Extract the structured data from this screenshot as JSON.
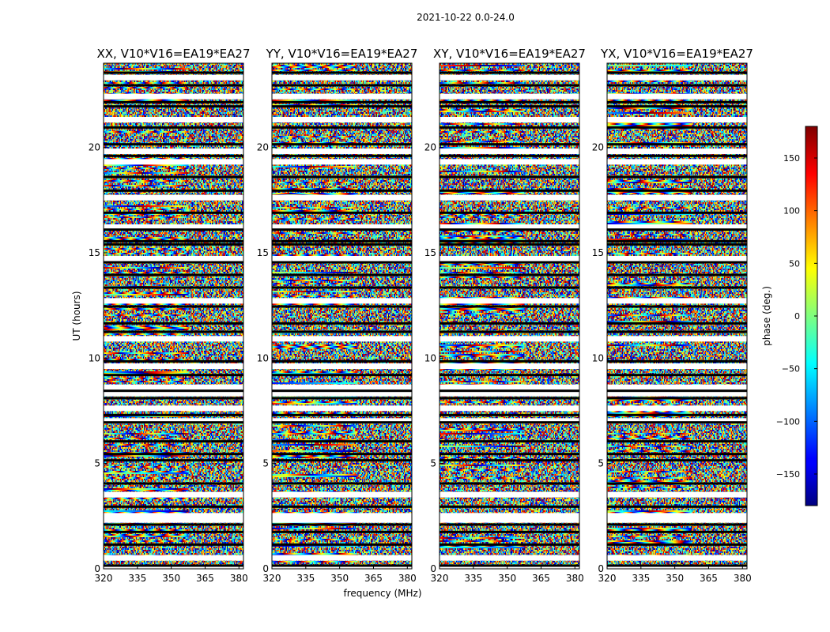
{
  "figure": {
    "suptitle": "2021-10-22 0.0-24.0"
  },
  "chart_data": {
    "type": "heatmap",
    "title": "2021-10-22 0.0-24.0",
    "xlabel": "frequency (MHz)",
    "ylabel": "UT (hours)",
    "xlim": [
      320,
      382
    ],
    "ylim": [
      0,
      24
    ],
    "x_ticks": [
      320,
      335,
      350,
      365,
      380
    ],
    "y_ticks": [
      0,
      5,
      10,
      15,
      20
    ],
    "panels": [
      {
        "title": "XX, V10*V16=EA19*EA27",
        "polarization": "XX"
      },
      {
        "title": "YY, V10*V16=EA19*EA27",
        "polarization": "YY"
      },
      {
        "title": "XY, V10*V16=EA19*EA27",
        "polarization": "XY"
      },
      {
        "title": "YX, V10*V16=EA19*EA27",
        "polarization": "YX"
      }
    ],
    "colorbar": {
      "label": "phase (deg.)",
      "range": [
        -180,
        180
      ],
      "ticks": [
        -150,
        -100,
        -50,
        0,
        50,
        100,
        150
      ],
      "colormap": "jet"
    },
    "blank_hours": [
      0.05,
      0.5,
      2.3,
      2.5,
      3.5,
      7.0,
      7.6,
      8.3,
      8.6,
      9.6,
      10.9,
      12.7,
      14.7,
      16.2,
      17.6,
      19.3,
      19.8,
      21.3,
      22.4,
      23.3
    ],
    "gap_hours": [
      0.15,
      1.15,
      1.75,
      2.1,
      2.95,
      4.05,
      5.15,
      5.45,
      6.05,
      6.95,
      7.3,
      8.1,
      8.45,
      9.2,
      9.85,
      11.25,
      11.65,
      12.45,
      13.35,
      13.95,
      14.55,
      15.4,
      15.55,
      16.1,
      16.9,
      17.95,
      18.6,
      19.6,
      20.15,
      20.95,
      21.95,
      22.15,
      22.95,
      23.55
    ]
  }
}
